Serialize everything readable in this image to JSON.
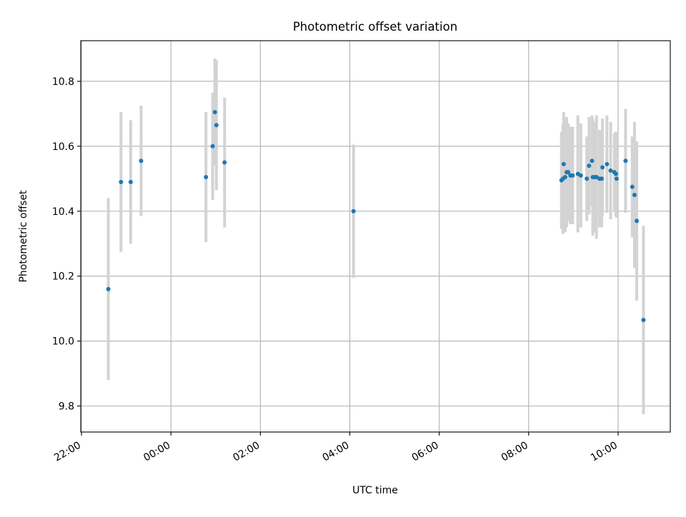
{
  "chart_data": {
    "type": "scatter",
    "title": "Photometric offset variation",
    "xlabel": "UTC time",
    "ylabel": "Photometric offset",
    "x_unit": "hours (UTC, relative to 22:00 on the first day)",
    "xlim": [
      "21:59",
      "11:10"
    ],
    "ylim": [
      9.72,
      10.925
    ],
    "x_ticks": [
      {
        "label": "22:00",
        "t": "22:00"
      },
      {
        "label": "00:00",
        "t": "00:00"
      },
      {
        "label": "02:00",
        "t": "02:00"
      },
      {
        "label": "04:00",
        "t": "04:00"
      },
      {
        "label": "06:00",
        "t": "06:00"
      },
      {
        "label": "08:00",
        "t": "08:00"
      },
      {
        "label": "10:00",
        "t": "10:00"
      }
    ],
    "y_ticks": [
      {
        "label": "9.8",
        "v": 9.8
      },
      {
        "label": "10.0",
        "v": 10.0
      },
      {
        "label": "10.2",
        "v": 10.2
      },
      {
        "label": "10.4",
        "v": 10.4
      },
      {
        "label": "10.6",
        "v": 10.6
      },
      {
        "label": "10.8",
        "v": 10.8
      }
    ],
    "grid": true,
    "colors": {
      "point": "#1f77b4",
      "errorbar": "#d3d3d3",
      "grid": "#b0b0b0",
      "axis": "#000000"
    },
    "points": [
      {
        "t": "22:36",
        "y": 10.16,
        "err": 0.28
      },
      {
        "t": "22:53",
        "y": 10.49,
        "err": 0.215
      },
      {
        "t": "23:06",
        "y": 10.49,
        "err": 0.19
      },
      {
        "t": "23:20",
        "y": 10.555,
        "err": 0.17
      },
      {
        "t": "00:47",
        "y": 10.505,
        "err": 0.2
      },
      {
        "t": "00:56",
        "y": 10.6,
        "err": 0.165
      },
      {
        "t": "00:59",
        "y": 10.705,
        "err": 0.165
      },
      {
        "t": "01:01",
        "y": 10.665,
        "err": 0.2
      },
      {
        "t": "01:12",
        "y": 10.55,
        "err": 0.2
      },
      {
        "t": "04:05",
        "y": 10.4,
        "err": 0.205
      },
      {
        "t": "08:44",
        "y": 10.495,
        "err": 0.15
      },
      {
        "t": "08:46",
        "y": 10.5,
        "err": 0.17
      },
      {
        "t": "08:47",
        "y": 10.545,
        "err": 0.16
      },
      {
        "t": "08:49",
        "y": 10.505,
        "err": 0.17
      },
      {
        "t": "08:51",
        "y": 10.52,
        "err": 0.17
      },
      {
        "t": "08:53",
        "y": 10.52,
        "err": 0.15
      },
      {
        "t": "08:56",
        "y": 10.51,
        "err": 0.15
      },
      {
        "t": "08:59",
        "y": 10.51,
        "err": 0.15
      },
      {
        "t": "09:06",
        "y": 10.515,
        "err": 0.18
      },
      {
        "t": "09:10",
        "y": 10.51,
        "err": 0.16
      },
      {
        "t": "09:18",
        "y": 10.5,
        "err": 0.13
      },
      {
        "t": "09:21",
        "y": 10.54,
        "err": 0.15
      },
      {
        "t": "09:25",
        "y": 10.555,
        "err": 0.14
      },
      {
        "t": "09:26",
        "y": 10.505,
        "err": 0.18
      },
      {
        "t": "09:29",
        "y": 10.505,
        "err": 0.17
      },
      {
        "t": "09:31",
        "y": 10.505,
        "err": 0.19
      },
      {
        "t": "09:35",
        "y": 10.5,
        "err": 0.15
      },
      {
        "t": "09:38",
        "y": 10.5,
        "err": 0.15
      },
      {
        "t": "09:39",
        "y": 10.535,
        "err": 0.15
      },
      {
        "t": "09:45",
        "y": 10.545,
        "err": 0.15
      },
      {
        "t": "09:50",
        "y": 10.525,
        "err": 0.15
      },
      {
        "t": "09:55",
        "y": 10.52,
        "err": 0.12
      },
      {
        "t": "09:57",
        "y": 10.515,
        "err": 0.13
      },
      {
        "t": "09:58",
        "y": 10.5,
        "err": 0.12
      },
      {
        "t": "10:10",
        "y": 10.555,
        "err": 0.16
      },
      {
        "t": "10:19",
        "y": 10.475,
        "err": 0.155
      },
      {
        "t": "10:22",
        "y": 10.45,
        "err": 0.225
      },
      {
        "t": "10:25",
        "y": 10.37,
        "err": 0.245
      },
      {
        "t": "10:34",
        "y": 10.065,
        "err": 0.29
      }
    ]
  }
}
